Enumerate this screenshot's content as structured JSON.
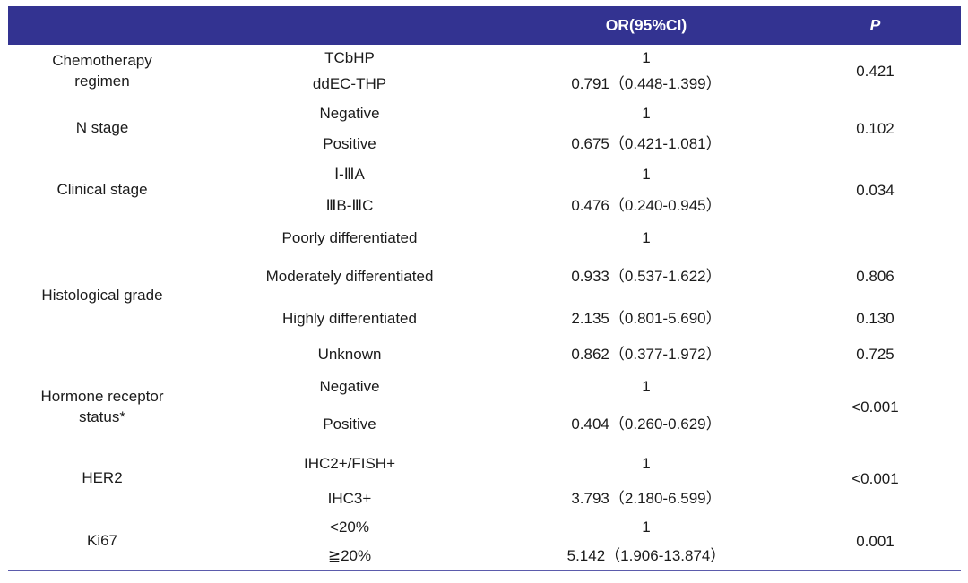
{
  "header": {
    "or_label": "OR(95%CI)",
    "p_label": "P"
  },
  "colors": {
    "header_bg": "#333391",
    "bottom_rule": "#5b5bac",
    "text": "#1b1b1b",
    "header_text": "#ffffff"
  },
  "table": {
    "groups": [
      {
        "factor_lines": [
          "Chemotherapy",
          "regimen"
        ],
        "p": "0.421",
        "subgroups": [
          {
            "name": "TCbHP",
            "or": "1"
          },
          {
            "name": "ddEC-THP",
            "or": "0.791（0.448-1.399）"
          }
        ]
      },
      {
        "factor_lines": [
          "N stage"
        ],
        "p": "0.102",
        "subgroups": [
          {
            "name": "Negative",
            "or": "1"
          },
          {
            "name": "Positive",
            "or": "0.675（0.421-1.081）"
          }
        ]
      },
      {
        "factor_lines": [
          "Clinical stage"
        ],
        "p": "0.034",
        "subgroups": [
          {
            "name": "Ⅰ-ⅢA",
            "or": "1"
          },
          {
            "name": "ⅢB-ⅢC",
            "or": "0.476（0.240-0.945）"
          }
        ]
      },
      {
        "factor_lines": [
          "Histological grade"
        ],
        "p": null,
        "subgroups": [
          {
            "name": "Poorly differentiated",
            "or": "1",
            "p": ""
          },
          {
            "name": "Moderately differentiated",
            "or": "0.933（0.537-1.622）",
            "p": "0.806"
          },
          {
            "name": "Highly differentiated",
            "or": "2.135（0.801-5.690）",
            "p": "0.130"
          },
          {
            "name": "Unknown",
            "or": "0.862（0.377-1.972）",
            "p": "0.725"
          }
        ]
      },
      {
        "factor_lines": [
          "Hormone receptor",
          "status*"
        ],
        "p": "<0.001",
        "subgroups": [
          {
            "name": "Negative",
            "or": "1"
          },
          {
            "name": "Positive",
            "or": "0.404（0.260-0.629）"
          }
        ]
      },
      {
        "factor_lines": [
          "HER2"
        ],
        "p": "<0.001",
        "subgroups": [
          {
            "name": "IHC2+/FISH+",
            "or": "1"
          },
          {
            "name": "IHC3+",
            "or": "3.793（2.180-6.599）"
          }
        ]
      },
      {
        "factor_lines": [
          "Ki67"
        ],
        "p": "0.001",
        "subgroups": [
          {
            "name": "<20%",
            "or": "1"
          },
          {
            "name": "≧20%",
            "or": "5.142（1.906-13.874）"
          }
        ]
      }
    ]
  }
}
